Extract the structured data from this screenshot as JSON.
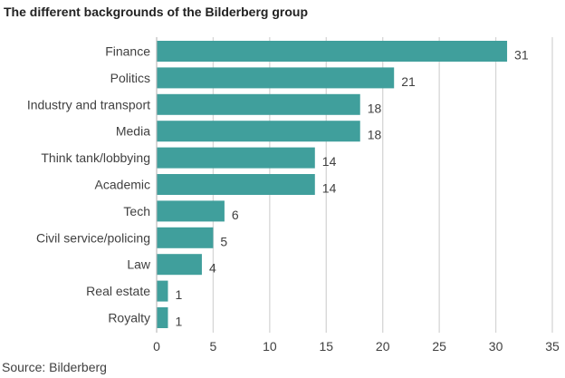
{
  "chart_data": {
    "type": "bar",
    "orientation": "horizontal",
    "title": "The different backgrounds of the Bilderberg group",
    "categories": [
      "Finance",
      "Politics",
      "Industry and transport",
      "Media",
      "Think tank/lobbying",
      "Academic",
      "Tech",
      "Civil service/policing",
      "Law",
      "Real estate",
      "Royalty"
    ],
    "values": [
      31,
      21,
      18,
      18,
      14,
      14,
      6,
      5,
      4,
      1,
      1
    ],
    "xlim": [
      0,
      35
    ],
    "xticks": [
      0,
      5,
      10,
      15,
      20,
      25,
      30,
      35
    ],
    "xlabel": "",
    "ylabel": "",
    "grid": "vertical",
    "bar_color": "#409f9c",
    "source": "Source: Bilderberg"
  }
}
